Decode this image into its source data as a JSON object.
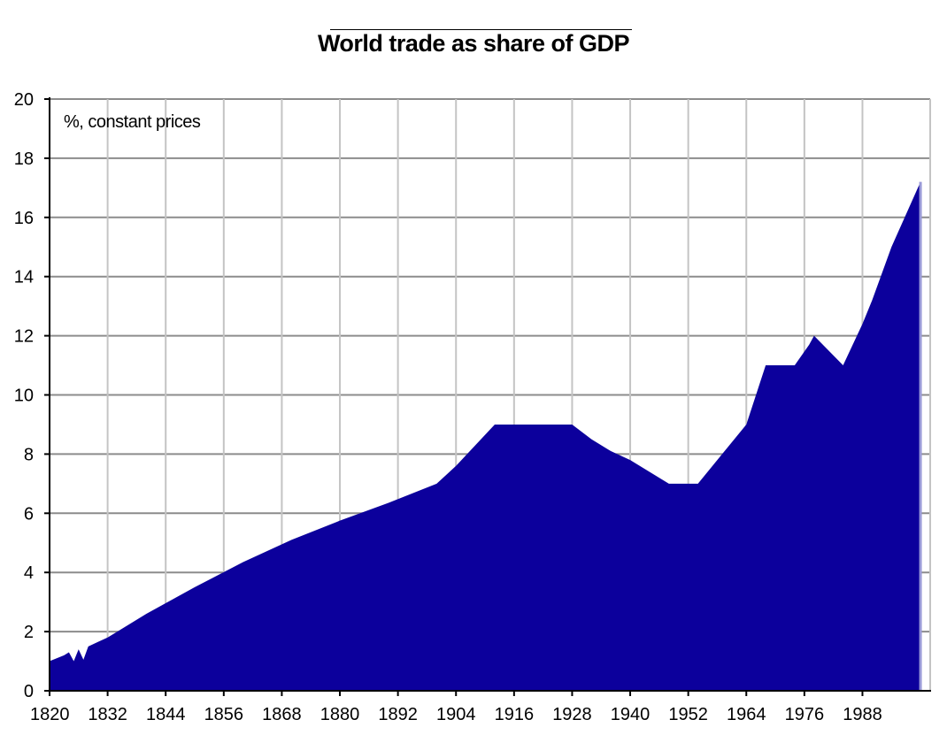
{
  "chart_data": {
    "type": "area",
    "title": "World trade as share of GDP",
    "annotation": "%, constant prices",
    "xlabel": "",
    "ylabel": "",
    "xlim": [
      1820,
      2002
    ],
    "ylim": [
      0,
      20
    ],
    "yticks": [
      0,
      2,
      4,
      6,
      8,
      10,
      12,
      14,
      16,
      18,
      20
    ],
    "xticks": [
      1820,
      1832,
      1844,
      1856,
      1868,
      1880,
      1892,
      1904,
      1916,
      1928,
      1940,
      1952,
      1964,
      1976,
      1988
    ],
    "grid": true,
    "series": [
      {
        "name": "World trade as share of GDP",
        "color": "#0c009c",
        "points": [
          [
            1820,
            1.0
          ],
          [
            1823,
            1.2
          ],
          [
            1824,
            1.3
          ],
          [
            1825,
            1.0
          ],
          [
            1826,
            1.4
          ],
          [
            1827,
            1.05
          ],
          [
            1828,
            1.5
          ],
          [
            1830,
            1.65
          ],
          [
            1832,
            1.8
          ],
          [
            1840,
            2.6
          ],
          [
            1850,
            3.5
          ],
          [
            1860,
            4.35
          ],
          [
            1870,
            5.1
          ],
          [
            1880,
            5.75
          ],
          [
            1890,
            6.35
          ],
          [
            1900,
            7.0
          ],
          [
            1904,
            7.6
          ],
          [
            1908,
            8.3
          ],
          [
            1912,
            9.0
          ],
          [
            1916,
            9.0
          ],
          [
            1920,
            9.0
          ],
          [
            1924,
            9.0
          ],
          [
            1928,
            9.0
          ],
          [
            1932,
            8.5
          ],
          [
            1936,
            8.1
          ],
          [
            1940,
            7.8
          ],
          [
            1944,
            7.4
          ],
          [
            1948,
            7.0
          ],
          [
            1952,
            7.0
          ],
          [
            1954,
            7.0
          ],
          [
            1960,
            8.2
          ],
          [
            1964,
            9.0
          ],
          [
            1966,
            10.0
          ],
          [
            1968,
            11.0
          ],
          [
            1970,
            11.0
          ],
          [
            1974,
            11.0
          ],
          [
            1977,
            11.7
          ],
          [
            1978,
            12.0
          ],
          [
            1984,
            11.0
          ],
          [
            1988,
            12.4
          ],
          [
            1990,
            13.2
          ],
          [
            1994,
            15.0
          ],
          [
            2000,
            17.2
          ]
        ]
      }
    ]
  }
}
